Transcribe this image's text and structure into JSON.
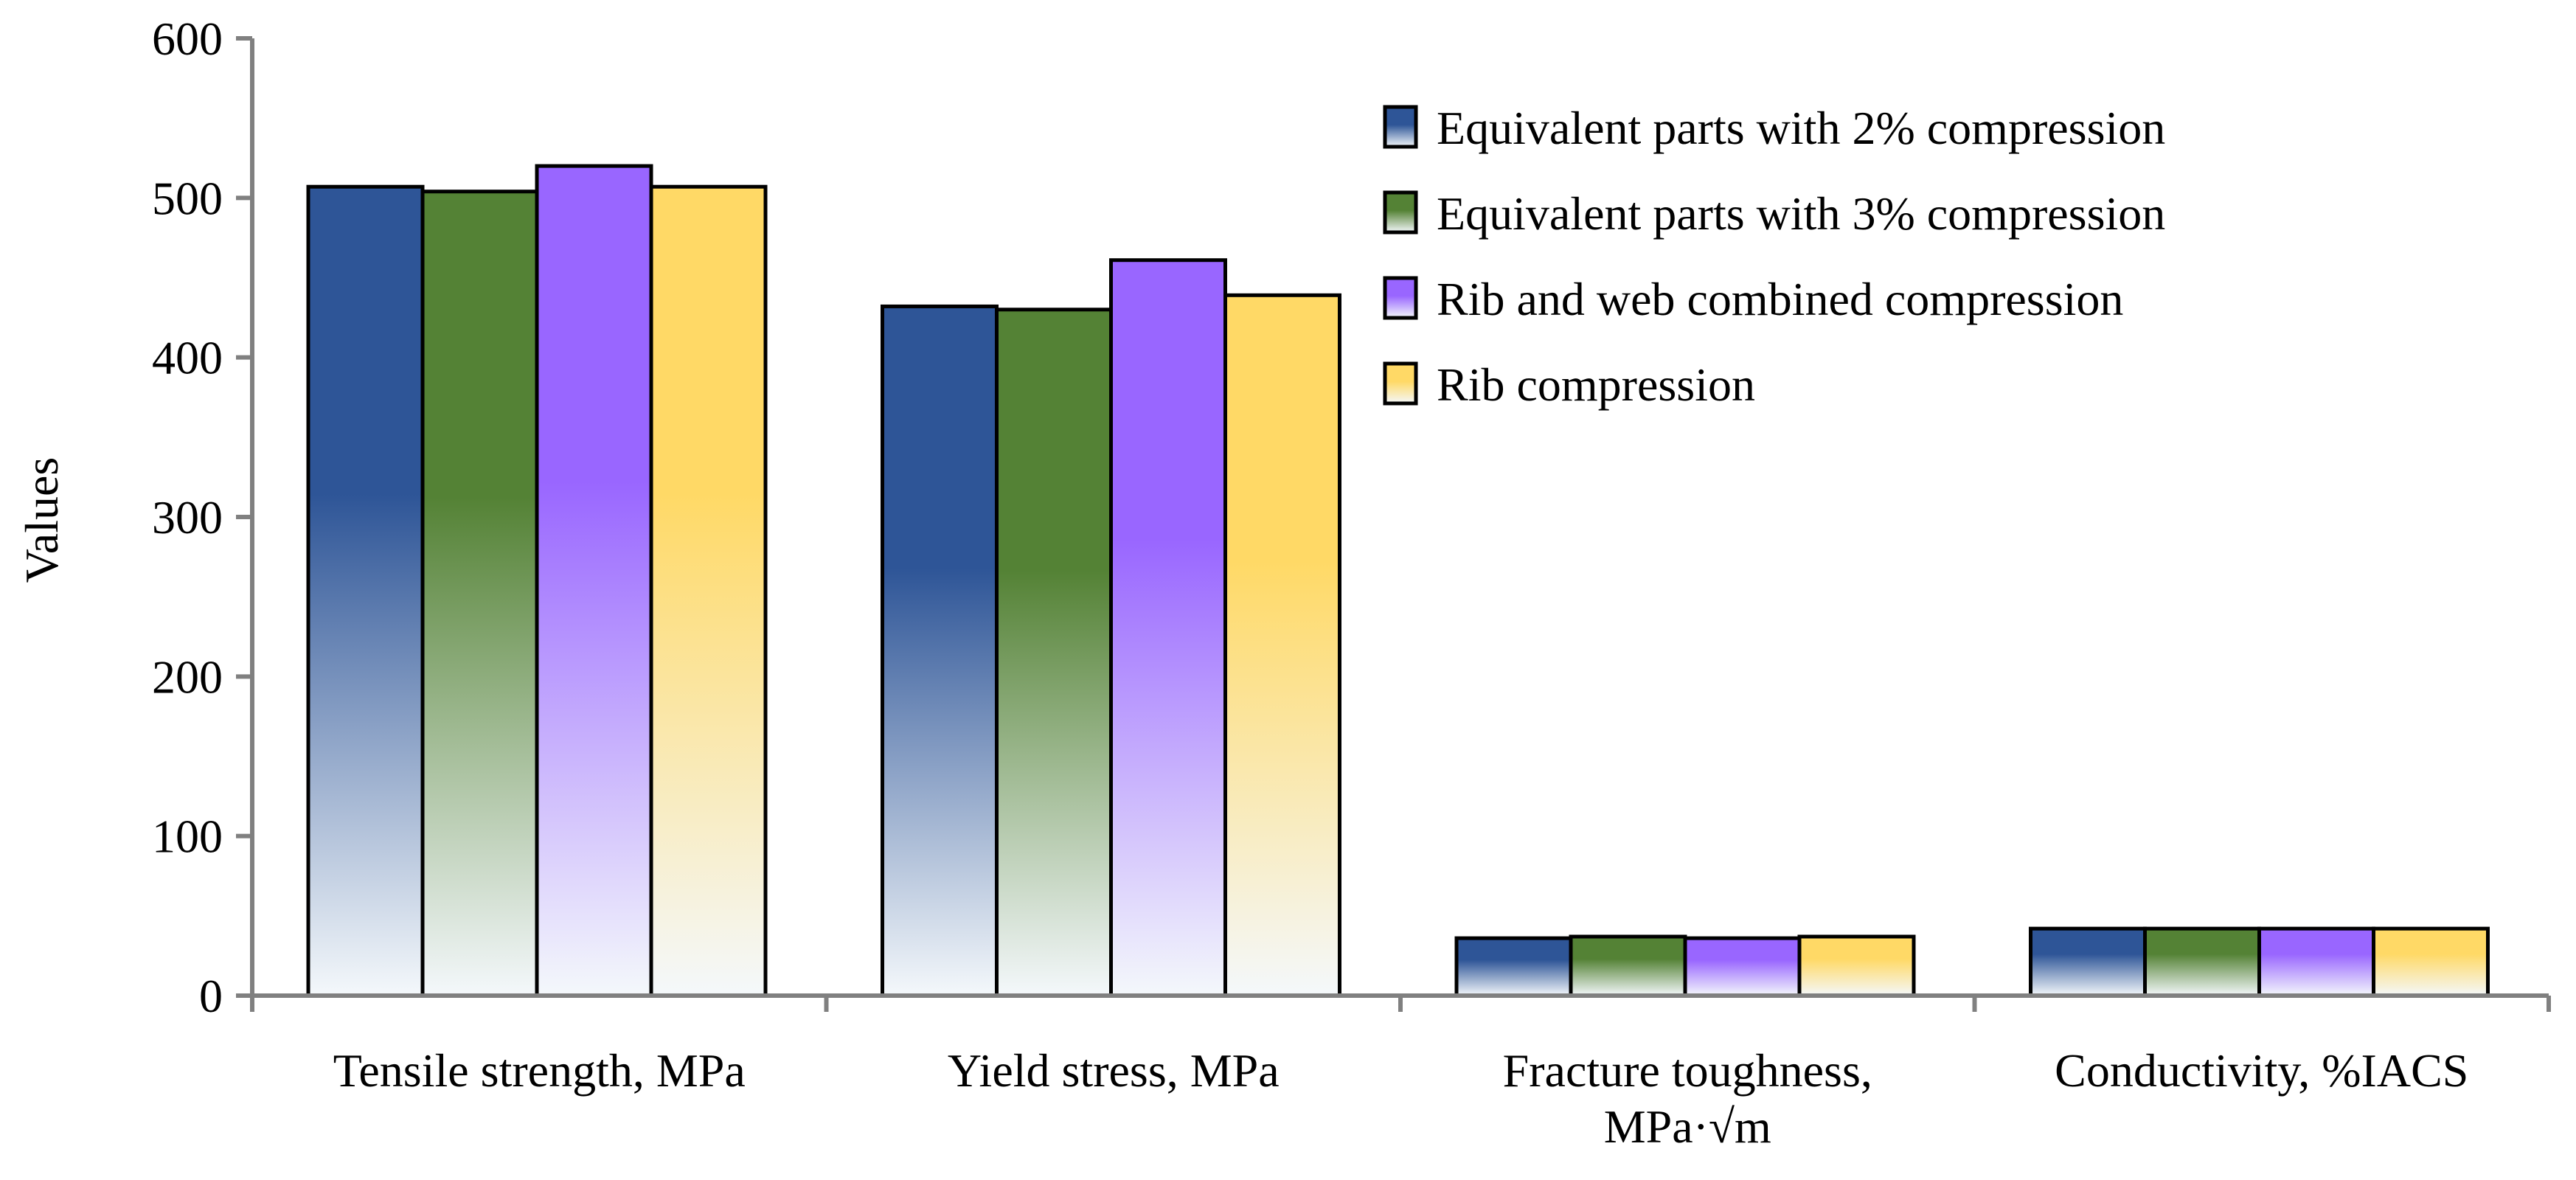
{
  "chart_data": {
    "type": "bar",
    "title": "",
    "xlabel": "",
    "ylabel": "Values",
    "ylim": [
      0,
      600
    ],
    "yticks": [
      "0",
      "100",
      "200",
      "300",
      "400",
      "500",
      "600"
    ],
    "grid": false,
    "legend_position": "top-right",
    "categories": [
      [
        "Tensile strength, MPa"
      ],
      [
        "Yield stress, MPa"
      ],
      [
        "Fracture toughness,",
        "MPa·√m"
      ],
      [
        "Conductivity, %IACS"
      ]
    ],
    "series": [
      {
        "name": "Equivalent parts with 2% compression",
        "color": "#2E5597",
        "values": [
          507,
          432,
          36,
          42
        ]
      },
      {
        "name": "Equivalent parts with 3% compression",
        "color": "#548235",
        "values": [
          504,
          430,
          37,
          42
        ]
      },
      {
        "name": "Rib and web combined compression",
        "color": "#9966FF",
        "values": [
          520,
          461,
          36,
          42
        ]
      },
      {
        "name": "Rib compression",
        "color": "#FFD966",
        "values": [
          507,
          439,
          37,
          42
        ]
      }
    ]
  }
}
